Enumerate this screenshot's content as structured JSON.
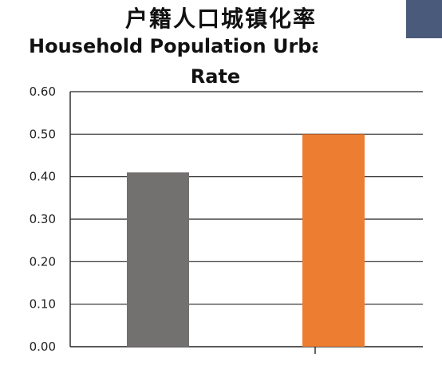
{
  "title_cn": "户籍人口城镇化率",
  "title_en_line1": "Household Population Urba",
  "title_en_line2": "Rate",
  "colors": {
    "bar1": "#737070",
    "bar2": "#ed7d31",
    "grid": "#222222",
    "corner": "#4a5a7a"
  },
  "chart_data": {
    "type": "bar",
    "title": "户籍人口城镇化率 Household Population Urba Rate",
    "categories": [
      "",
      ""
    ],
    "values": [
      0.41,
      0.5
    ],
    "ylim": [
      0,
      0.6
    ],
    "yticks": [
      "0.00",
      "0.10",
      "0.20",
      "0.30",
      "0.40",
      "0.50",
      "0.60"
    ],
    "grid": true,
    "legend": "none"
  }
}
